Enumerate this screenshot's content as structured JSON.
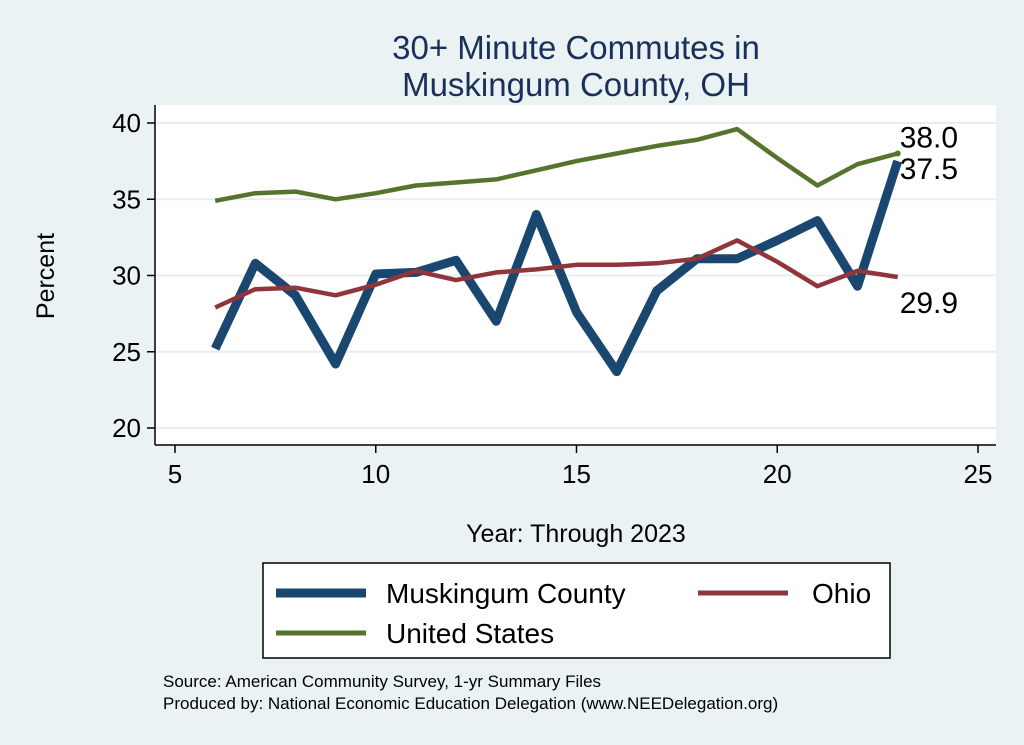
{
  "chart_data": {
    "type": "line",
    "title_lines": [
      "30+ Minute Commutes in",
      "Muskingum County, OH"
    ],
    "xlabel": "Year: Through 2023",
    "ylabel": "Percent",
    "xlim": [
      5,
      25
    ],
    "ylim": [
      20,
      40
    ],
    "x_ticks": [
      5,
      10,
      15,
      20,
      25
    ],
    "y_ticks": [
      20,
      25,
      30,
      35,
      40
    ],
    "grid": "horizontal",
    "legend_position": "bottom",
    "series": [
      {
        "name": "Muskingum County",
        "color": "#1a476f",
        "x": [
          6,
          7,
          8,
          9,
          10,
          11,
          12,
          13,
          14,
          15,
          16,
          17,
          18,
          19,
          20,
          21,
          22,
          23
        ],
        "y": [
          25.2,
          30.8,
          28.7,
          24.2,
          30.1,
          30.2,
          31.0,
          27.0,
          34.0,
          27.6,
          23.7,
          29.0,
          31.1,
          31.1,
          32.3,
          33.6,
          29.3,
          37.5
        ]
      },
      {
        "name": "Ohio",
        "color": "#90353b",
        "x": [
          6,
          7,
          8,
          9,
          10,
          11,
          12,
          13,
          14,
          15,
          16,
          17,
          18,
          19,
          20,
          21,
          22,
          23
        ],
        "y": [
          27.9,
          29.1,
          29.2,
          28.7,
          29.4,
          30.3,
          29.7,
          30.2,
          30.4,
          30.7,
          30.7,
          30.8,
          31.1,
          32.3,
          30.9,
          29.3,
          30.3,
          29.9
        ]
      },
      {
        "name": "United States",
        "color": "#55752f",
        "x": [
          6,
          7,
          8,
          9,
          10,
          11,
          12,
          13,
          14,
          15,
          16,
          17,
          18,
          19,
          20,
          21,
          22,
          23
        ],
        "y": [
          34.9,
          35.4,
          35.5,
          35.0,
          35.4,
          35.9,
          36.1,
          36.3,
          36.9,
          37.5,
          38.0,
          38.5,
          38.9,
          39.6,
          37.7,
          35.9,
          37.3,
          38.0
        ]
      }
    ],
    "end_labels": [
      {
        "series": "United States",
        "text": "38.0"
      },
      {
        "series": "Muskingum County",
        "text": "37.5"
      },
      {
        "series": "Ohio",
        "text": "29.9"
      }
    ],
    "notes": [
      "Source: American Community Survey, 1-yr Summary Files",
      "Produced by: National Economic Education Delegation (www.NEEDelegation.org)"
    ]
  }
}
